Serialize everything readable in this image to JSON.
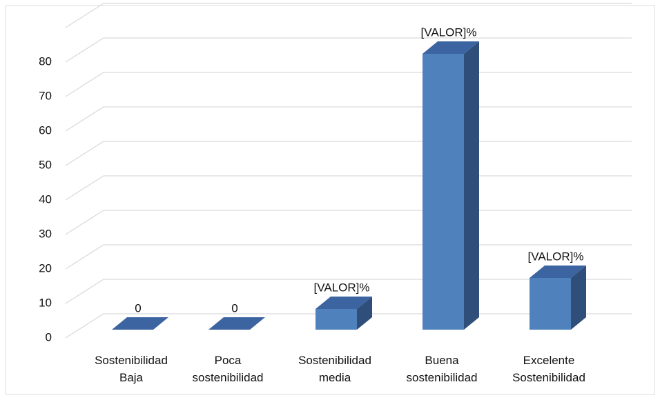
{
  "chart_data": {
    "type": "bar3d",
    "categories": [
      "Sostenibilidad Baja",
      "Poca sostenibilidad",
      "Sostenibilidad media",
      "Buena sostenibilidad",
      "Excelente Sostenibilidad"
    ],
    "values": [
      0,
      0,
      6,
      80,
      15
    ],
    "value_labels": [
      "0",
      "0",
      "[VALOR]%",
      "[VALOR]%",
      "[VALOR]%"
    ],
    "color": "#4f81bd",
    "ylim": [
      0,
      90
    ],
    "yticks": [
      0,
      10,
      20,
      30,
      40,
      50,
      60,
      70,
      80
    ],
    "grid": true
  }
}
